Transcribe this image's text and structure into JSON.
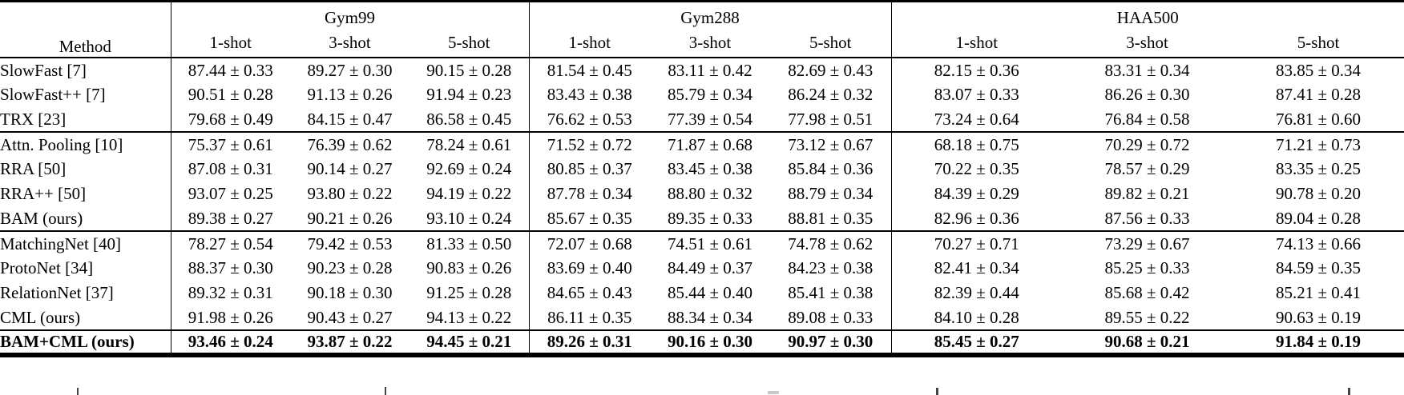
{
  "table": {
    "method_header": "Method",
    "datasets": [
      {
        "label": "Gym99",
        "shots": [
          "1-shot",
          "3-shot",
          "5-shot"
        ]
      },
      {
        "label": "Gym288",
        "shots": [
          "1-shot",
          "3-shot",
          "5-shot"
        ]
      },
      {
        "label": "HAA500",
        "shots": [
          "1-shot",
          "3-shot",
          "5-shot"
        ]
      }
    ],
    "row_groups": [
      {
        "bold": false,
        "rows": [
          {
            "method": "SlowFast [7]",
            "values": [
              "87.44 ± 0.33",
              "89.27 ± 0.30",
              "90.15 ± 0.28",
              "81.54 ± 0.45",
              "83.11 ± 0.42",
              "82.69 ± 0.43",
              "82.15 ± 0.36",
              "83.31 ± 0.34",
              "83.85 ± 0.34"
            ]
          },
          {
            "method": "SlowFast++ [7]",
            "values": [
              "90.51 ± 0.28",
              "91.13 ± 0.26",
              "91.94 ± 0.23",
              "83.43 ± 0.38",
              "85.79 ± 0.34",
              "86.24 ± 0.32",
              "83.07 ± 0.33",
              "86.26 ± 0.30",
              "87.41 ± 0.28"
            ]
          },
          {
            "method": "TRX [23]",
            "values": [
              "79.68 ± 0.49",
              "84.15 ± 0.47",
              "86.58 ± 0.45",
              "76.62 ± 0.53",
              "77.39 ± 0.54",
              "77.98 ± 0.51",
              "73.24 ± 0.64",
              "76.84 ± 0.58",
              "76.81 ± 0.60"
            ]
          }
        ]
      },
      {
        "bold": false,
        "rows": [
          {
            "method": "Attn. Pooling [10]",
            "values": [
              "75.37 ± 0.61",
              "76.39 ± 0.62",
              "78.24 ± 0.61",
              "71.52 ± 0.72",
              "71.87 ± 0.68",
              "73.12 ± 0.67",
              "68.18 ± 0.75",
              "70.29 ± 0.72",
              "71.21 ± 0.73"
            ]
          },
          {
            "method": "RRA [50]",
            "values": [
              "87.08 ± 0.31",
              "90.14 ± 0.27",
              "92.69 ± 0.24",
              "80.85 ± 0.37",
              "83.45 ± 0.38",
              "85.84 ± 0.36",
              "70.22 ± 0.35",
              "78.57 ± 0.29",
              "83.35 ± 0.25"
            ]
          },
          {
            "method": "RRA++ [50]",
            "values": [
              "93.07 ± 0.25",
              "93.80 ± 0.22",
              "94.19 ± 0.22",
              "87.78 ± 0.34",
              "88.80 ± 0.32",
              "88.79 ± 0.34",
              "84.39 ± 0.29",
              "89.82 ± 0.21",
              "90.78 ± 0.20"
            ]
          },
          {
            "method": "BAM (ours)",
            "values": [
              "89.38 ± 0.27",
              "90.21 ± 0.26",
              "93.10 ± 0.24",
              "85.67 ± 0.35",
              "89.35 ± 0.33",
              "88.81 ± 0.35",
              "82.96 ± 0.36",
              "87.56 ± 0.33",
              "89.04 ± 0.28"
            ]
          }
        ]
      },
      {
        "bold": false,
        "rows": [
          {
            "method": "MatchingNet [40]",
            "values": [
              "78.27 ± 0.54",
              "79.42 ± 0.53",
              "81.33 ± 0.50",
              "72.07 ± 0.68",
              "74.51 ± 0.61",
              "74.78 ± 0.62",
              "70.27 ± 0.71",
              "73.29 ± 0.67",
              "74.13 ± 0.66"
            ]
          },
          {
            "method": "ProtoNet [34]",
            "values": [
              "88.37 ± 0.30",
              "90.23 ± 0.28",
              "90.83 ± 0.26",
              "83.69 ± 0.40",
              "84.49 ± 0.37",
              "84.23 ± 0.38",
              "82.41 ± 0.34",
              "85.25 ± 0.33",
              "84.59 ± 0.35"
            ]
          },
          {
            "method": "RelationNet [37]",
            "values": [
              "89.32 ± 0.31",
              "90.18 ± 0.30",
              "91.25 ± 0.28",
              "84.65 ± 0.43",
              "85.44 ± 0.40",
              "85.41 ± 0.38",
              "82.39 ± 0.44",
              "85.68 ± 0.42",
              "85.21 ± 0.41"
            ]
          },
          {
            "method": "CML (ours)",
            "values": [
              "91.98 ± 0.26",
              "90.43 ± 0.27",
              "94.13 ± 0.22",
              "86.11 ± 0.35",
              "88.34 ± 0.34",
              "89.08 ± 0.33",
              "84.10 ± 0.28",
              "89.55 ± 0.22",
              "90.63 ± 0.19"
            ]
          }
        ]
      },
      {
        "bold": true,
        "rows": [
          {
            "method": "BAM+CML (ours)",
            "values": [
              "93.46 ± 0.24",
              "93.87 ± 0.22",
              "94.45 ± 0.21",
              "89.26 ± 0.31",
              "90.16 ± 0.30",
              "90.97 ± 0.30",
              "85.45 ± 0.27",
              "90.68 ± 0.21",
              "91.84 ± 0.19"
            ]
          }
        ]
      }
    ]
  }
}
